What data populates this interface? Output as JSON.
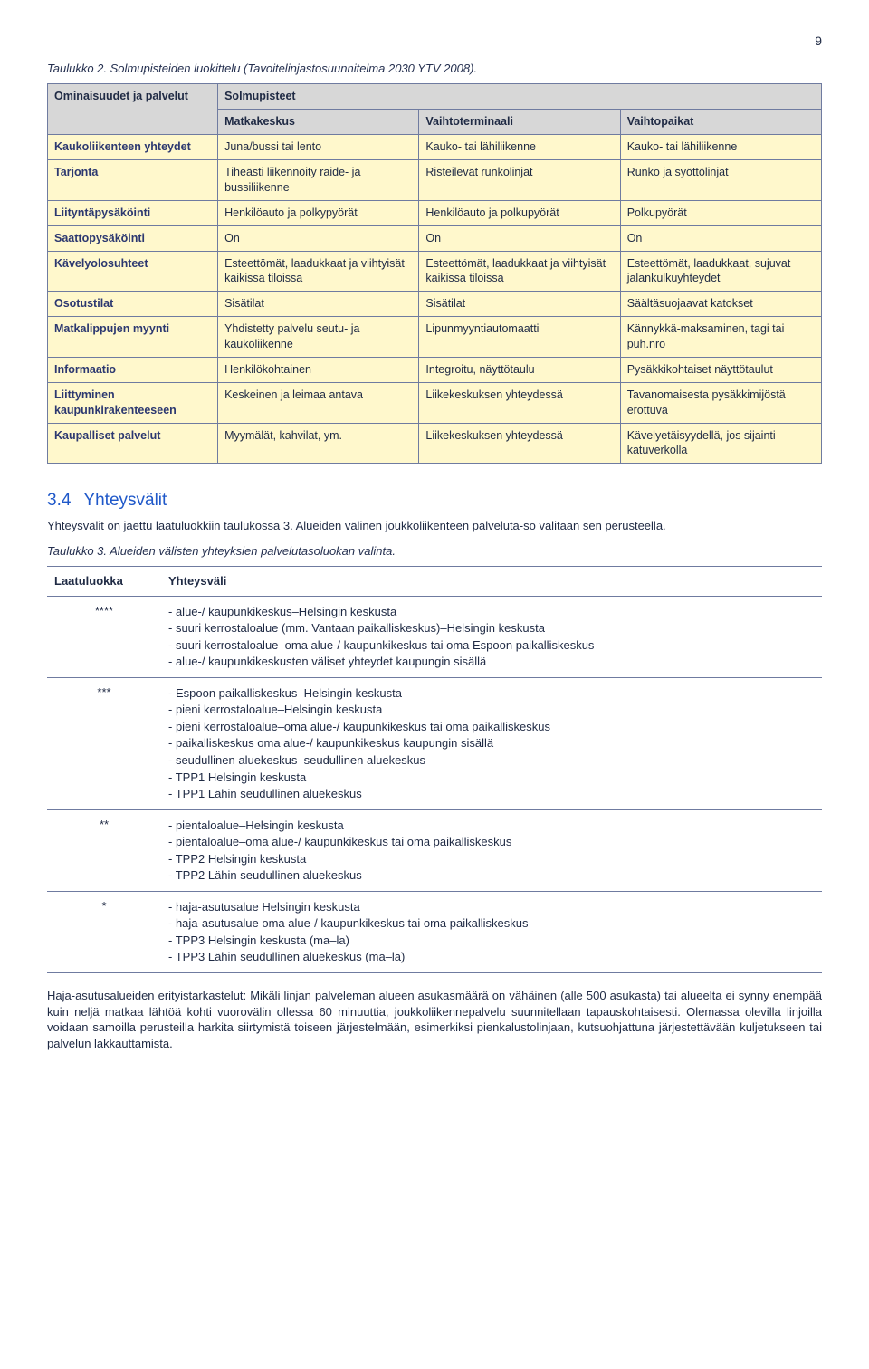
{
  "page_number": "9",
  "table2_caption": "Taulukko 2. Solmupisteiden luokittelu (Tavoitelinjastosuunnitelma 2030 YTV 2008).",
  "tb2": {
    "corner": "Ominaisuudet ja palvelut",
    "header_top": "Solmupisteet",
    "cols": [
      "Matkakeskus",
      "Vaihtoterminaali",
      "Vaihtopaikat"
    ],
    "rows": [
      {
        "label": "Kaukoliikenteen yhteydet",
        "c": [
          "Juna/bussi tai lento",
          "Kauko- tai lähiliikenne",
          "Kauko- tai lähiliikenne"
        ]
      },
      {
        "label": "Tarjonta",
        "c": [
          "Tiheästi liikennöity raide- ja bussiliikenne",
          "Risteilevät runkolinjat",
          "Runko ja syöttölinjat"
        ]
      },
      {
        "label": "Liityntäpysäköinti",
        "c": [
          "Henkilöauto ja polkypyörät",
          "Henkilöauto ja polkupyörät",
          "Polkupyörät"
        ]
      },
      {
        "label": "Saattopysäköinti",
        "c": [
          "On",
          "On",
          "On"
        ]
      },
      {
        "label": "Kävelyolosuhteet",
        "c": [
          "Esteettömät, laadukkaat ja viihtyisät kaikissa tiloissa",
          "Esteettömät, laadukkaat ja viihtyisät kaikissa tiloissa",
          "Esteettömät, laadukkaat, sujuvat jalankulkuyhteydet"
        ]
      },
      {
        "label": "Osotustilat",
        "c": [
          "Sisätilat",
          "Sisätilat",
          "Säältäsuojaavat katokset"
        ]
      },
      {
        "label": "Matkalippujen myynti",
        "c": [
          "Yhdistetty palvelu seutu- ja kaukoliikenne",
          "Lipunmyyntiautomaatti",
          "Kännykkä-maksaminen, tagi tai puh.nro"
        ]
      },
      {
        "label": "Informaatio",
        "c": [
          "Henkilökohtainen",
          "Integroitu, näyttötaulu",
          "Pysäkkikohtaiset näyttötaulut"
        ]
      },
      {
        "label": "Liittyminen kaupunkirakenteeseen",
        "c": [
          "Keskeinen ja leimaa antava",
          "Liikekeskuksen yhteydessä",
          "Tavanomaisesta pysäkkimijöstä erottuva"
        ]
      },
      {
        "label": "Kaupalliset palvelut",
        "c": [
          "Myymälät, kahvilat, ym.",
          "Liikekeskuksen yhteydessä",
          "Kävelyetäisyydellä, jos sijainti katuverkolla"
        ]
      }
    ]
  },
  "sec34_num": "3.4",
  "sec34_title": "Yhteysvälit",
  "sec34_p1": "Yhteysvälit on jaettu laatuluokkiin taulukossa 3. Alueiden välinen joukkoliikenteen palveluta-so valitaan sen perusteella.",
  "table3_caption": "Taulukko 3. Alueiden välisten yhteyksien palvelutasoluokan valinta.",
  "tb3": {
    "head": [
      "Laatuluokka",
      "Yhteysväli"
    ],
    "rows": [
      {
        "k": "****",
        "items": [
          "alue-/ kaupunkikeskus–Helsingin keskusta",
          "suuri kerrostaloalue (mm. Vantaan paikalliskeskus)–Helsingin keskusta",
          "suuri kerrostaloalue–oma alue-/ kaupunkikeskus tai oma Espoon paikalliskeskus",
          "alue-/ kaupunkikeskusten väliset yhteydet kaupungin sisällä"
        ]
      },
      {
        "k": "***",
        "items": [
          "Espoon paikalliskeskus–Helsingin keskusta",
          "pieni kerrostaloalue–Helsingin keskusta",
          "pieni kerrostaloalue–oma alue-/ kaupunkikeskus tai oma paikalliskeskus",
          "paikalliskeskus oma alue-/ kaupunkikeskus kaupungin sisällä",
          "seudullinen aluekeskus–seudullinen aluekeskus",
          "TPP1  Helsingin keskusta",
          "TPP1  Lähin seudullinen aluekeskus"
        ]
      },
      {
        "k": "**",
        "items": [
          "pientaloalue–Helsingin keskusta",
          "pientaloalue–oma alue-/ kaupunkikeskus tai oma paikalliskeskus",
          "TPP2  Helsingin keskusta",
          "TPP2  Lähin seudullinen aluekeskus"
        ]
      },
      {
        "k": "*",
        "items": [
          "haja-asutusalue  Helsingin keskusta",
          "haja-asutusalue  oma alue-/ kaupunkikeskus tai oma paikalliskeskus",
          "TPP3  Helsingin keskusta (ma–la)",
          "TPP3  Lähin seudullinen aluekeskus (ma–la)"
        ]
      }
    ]
  },
  "footer_p": "Haja-asutusalueiden erityistarkastelut: Mikäli linjan palveleman alueen asukasmäärä on vähäinen (alle 500 asukasta) tai alueelta ei synny enempää kuin neljä matkaa lähtöä kohti vuorovälin ollessa 60 minuuttia, joukkoliikennepalvelu suunnitellaan tapauskohtaisesti. Olemassa olevilla linjoilla voidaan samoilla perusteilla harkita siirtymistä toiseen järjestelmään, esimerkiksi pienkalustolinjaan, kutsuohjattuna järjestettävään kuljetukseen tai palvelun lakkauttamista."
}
